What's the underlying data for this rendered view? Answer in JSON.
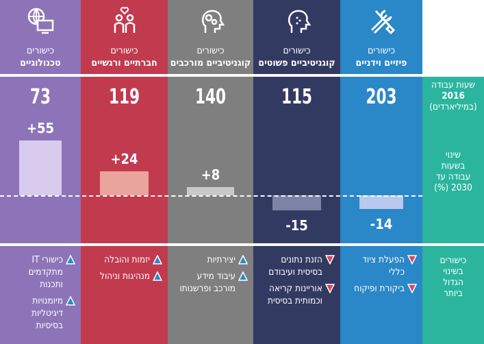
{
  "row_labels": {
    "hours_2016": [
      "שעות עבודה",
      "2016",
      "(במיליארדים)"
    ],
    "change_2030": [
      "שינוי",
      "בשעות",
      "עבודה עד",
      "2030 (%)"
    ],
    "biggest_change": [
      "כישורים",
      "בשינוי",
      "הגדול",
      "ביותר"
    ]
  },
  "colors": {
    "teal": "#2bb59e",
    "blue": "#2a87c8",
    "navy": "#333a62",
    "gray": "#7f7f7f",
    "red": "#c23a4e",
    "purple": "#8d74b8",
    "up_triangle": "#2a87c8",
    "down_triangle": "#d9475a"
  },
  "columns": [
    {
      "line1": "כישורים",
      "line2": "פיזיים וידניים",
      "hours": "203",
      "change": -14,
      "change_label": "-14",
      "icon": "tools-icon",
      "items": [
        {
          "dir": "down",
          "text": "הפעלת ציוד כללי"
        },
        {
          "dir": "down",
          "text": "ביקורת ופיקוח"
        }
      ]
    },
    {
      "line1": "כישורים",
      "line2": "קוגניטיביים פשוטים",
      "hours": "115",
      "change": -15,
      "change_label": "-15",
      "icon": "head-simple-icon",
      "items": [
        {
          "dir": "down",
          "text": "הזנת נתונים בסיסית ועיבודם"
        },
        {
          "dir": "down",
          "text": "אוריינות קריאה וכמותית בסיסית"
        }
      ]
    },
    {
      "line1": "כישורים",
      "line2": "קוגניטיביים מורכבים",
      "hours": "140",
      "change": 8,
      "change_label": "+8",
      "icon": "head-gears-icon",
      "items": [
        {
          "dir": "up",
          "text": "יצירתיות"
        },
        {
          "dir": "up",
          "text": "עיבוד מידע מורכב ופרשנותו"
        }
      ]
    },
    {
      "line1": "כישורים",
      "line2": "חברתיים ורגשיים",
      "hours": "119",
      "change": 24,
      "change_label": "+24",
      "icon": "people-heart-icon",
      "items": [
        {
          "dir": "up",
          "text": "יזמות והובלה"
        },
        {
          "dir": "up",
          "text": "מנהיגות וניהול"
        }
      ]
    },
    {
      "line1": "כישורים",
      "line2": "טכנולוגיים",
      "hours": "73",
      "change": 55,
      "change_label": "+55",
      "icon": "globe-computer-icon",
      "items": [
        {
          "dir": "up",
          "text": "כישורי IT מתקדמים ותכנות"
        },
        {
          "dir": "up",
          "text": "מיומנויות דיגיטליות בסיסיות"
        }
      ]
    }
  ]
}
